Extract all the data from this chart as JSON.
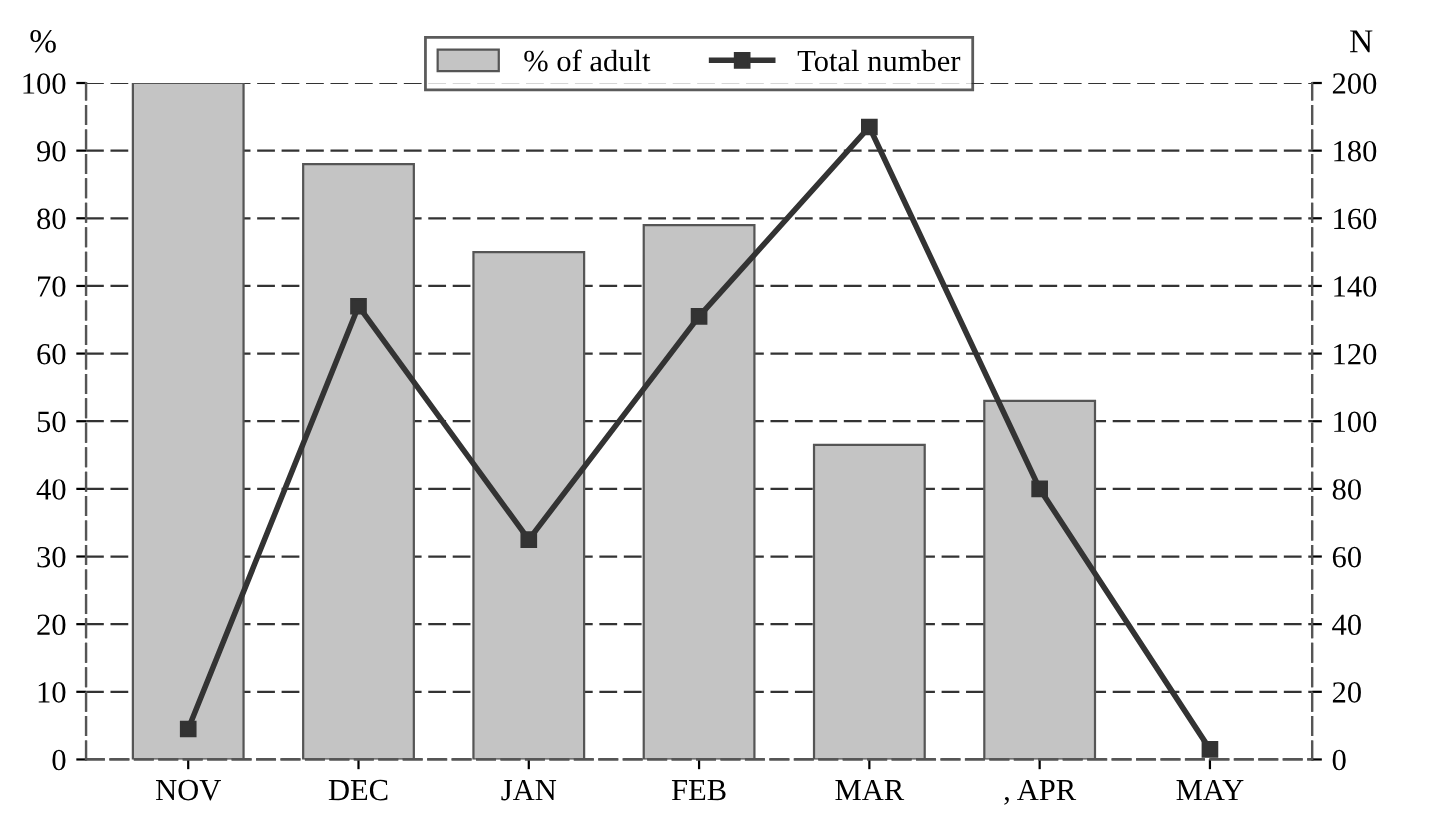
{
  "chart_data": {
    "type": "bar",
    "categories": [
      "NOV",
      "DEC",
      "JAN",
      "FEB",
      "MAR",
      ", APR",
      "MAY"
    ],
    "ylabel": "%",
    "y2label": "N",
    "series": [
      {
        "name": "% of adult",
        "color": "#c4c4c4",
        "values": [
          100,
          88,
          75,
          79,
          46.5,
          53,
          null
        ]
      },
      {
        "name": "Total number",
        "type": "line",
        "axis": "y2",
        "color": "#333333",
        "marker": "square",
        "values": [
          9,
          134,
          65,
          131,
          187,
          80,
          3
        ]
      }
    ],
    "ylim": [
      0,
      100
    ],
    "yticks": [
      0,
      10,
      20,
      30,
      40,
      50,
      60,
      70,
      80,
      90,
      100
    ],
    "y2lim": [
      0,
      200
    ],
    "y2ticks": [
      0,
      20,
      40,
      60,
      80,
      100,
      120,
      140,
      160,
      180,
      200
    ],
    "grid": "y",
    "legend": "top"
  }
}
